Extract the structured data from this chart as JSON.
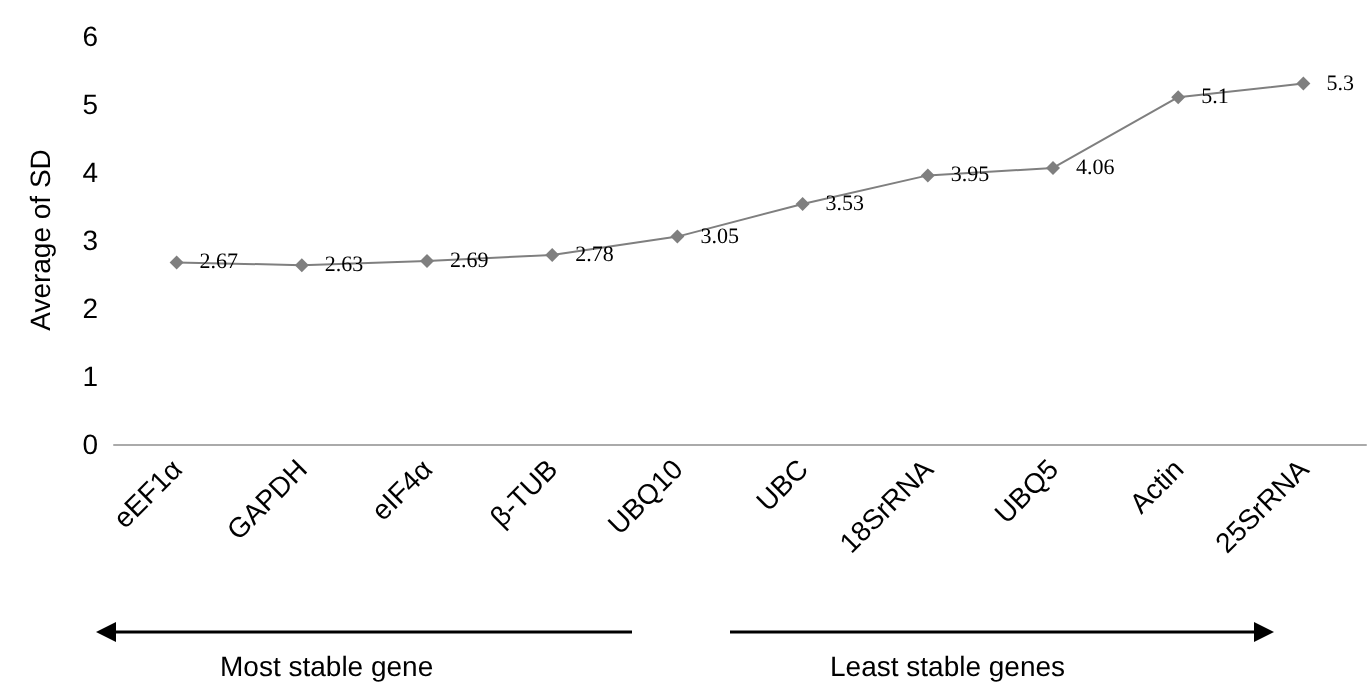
{
  "chart_data": {
    "type": "line",
    "ylabel": "Average of SD",
    "categories": [
      "eEF1α",
      "GAPDH",
      "eIF4α",
      "β-TUB",
      "UBQ10",
      "UBC",
      "18SrRNA",
      "UBQ5",
      "Actin",
      "25SrRNA"
    ],
    "series": [
      {
        "color": "#7f7f7f",
        "values": [
          2.67,
          2.63,
          2.69,
          2.78,
          3.05,
          3.53,
          3.95,
          4.06,
          5.1,
          5.3
        ]
      }
    ],
    "ylim": [
      0,
      6
    ],
    "yticks": [
      0,
      1,
      2,
      3,
      4,
      5,
      6
    ],
    "grid": false,
    "marker": "diamond",
    "line_style": "solid",
    "data_labels": true,
    "annotations": [
      "Most stable gene",
      "Least stable genes"
    ]
  }
}
